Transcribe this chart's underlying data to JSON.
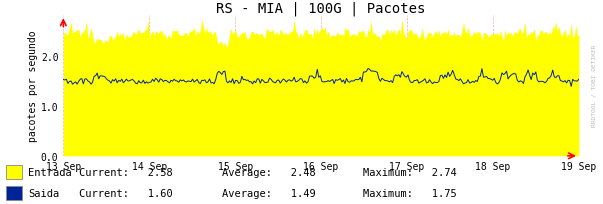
{
  "title": "RS - MIA | 100G | Pacotes",
  "ylabel": "pacotes por segundo",
  "background_color": "#ffffff",
  "plot_bg_color": "#ffffff",
  "grid_color": "#ffaaaa",
  "ylim": [
    0.0,
    2.8
  ],
  "yticks": [
    0.0,
    1.0,
    2.0
  ],
  "x_labels": [
    "13 Sep",
    "14 Sep",
    "15 Sep",
    "16 Sep",
    "17 Sep",
    "18 Sep",
    "19 Sep"
  ],
  "entrada_color": "#ffff00",
  "saida_line_color": "#002299",
  "entrada_avg": 2.48,
  "entrada_max": 2.74,
  "entrada_current": 2.58,
  "saida_avg": 1.49,
  "saida_max": 1.75,
  "saida_current": 1.6,
  "legend_entrada": "Entrada",
  "legend_saida": "Saida",
  "watermark": "RRDTOOL / TOBI OETIKER",
  "title_fontsize": 10,
  "axis_fontsize": 7,
  "label_fontsize": 7,
  "legend_fontsize": 7.5,
  "num_points": 336
}
